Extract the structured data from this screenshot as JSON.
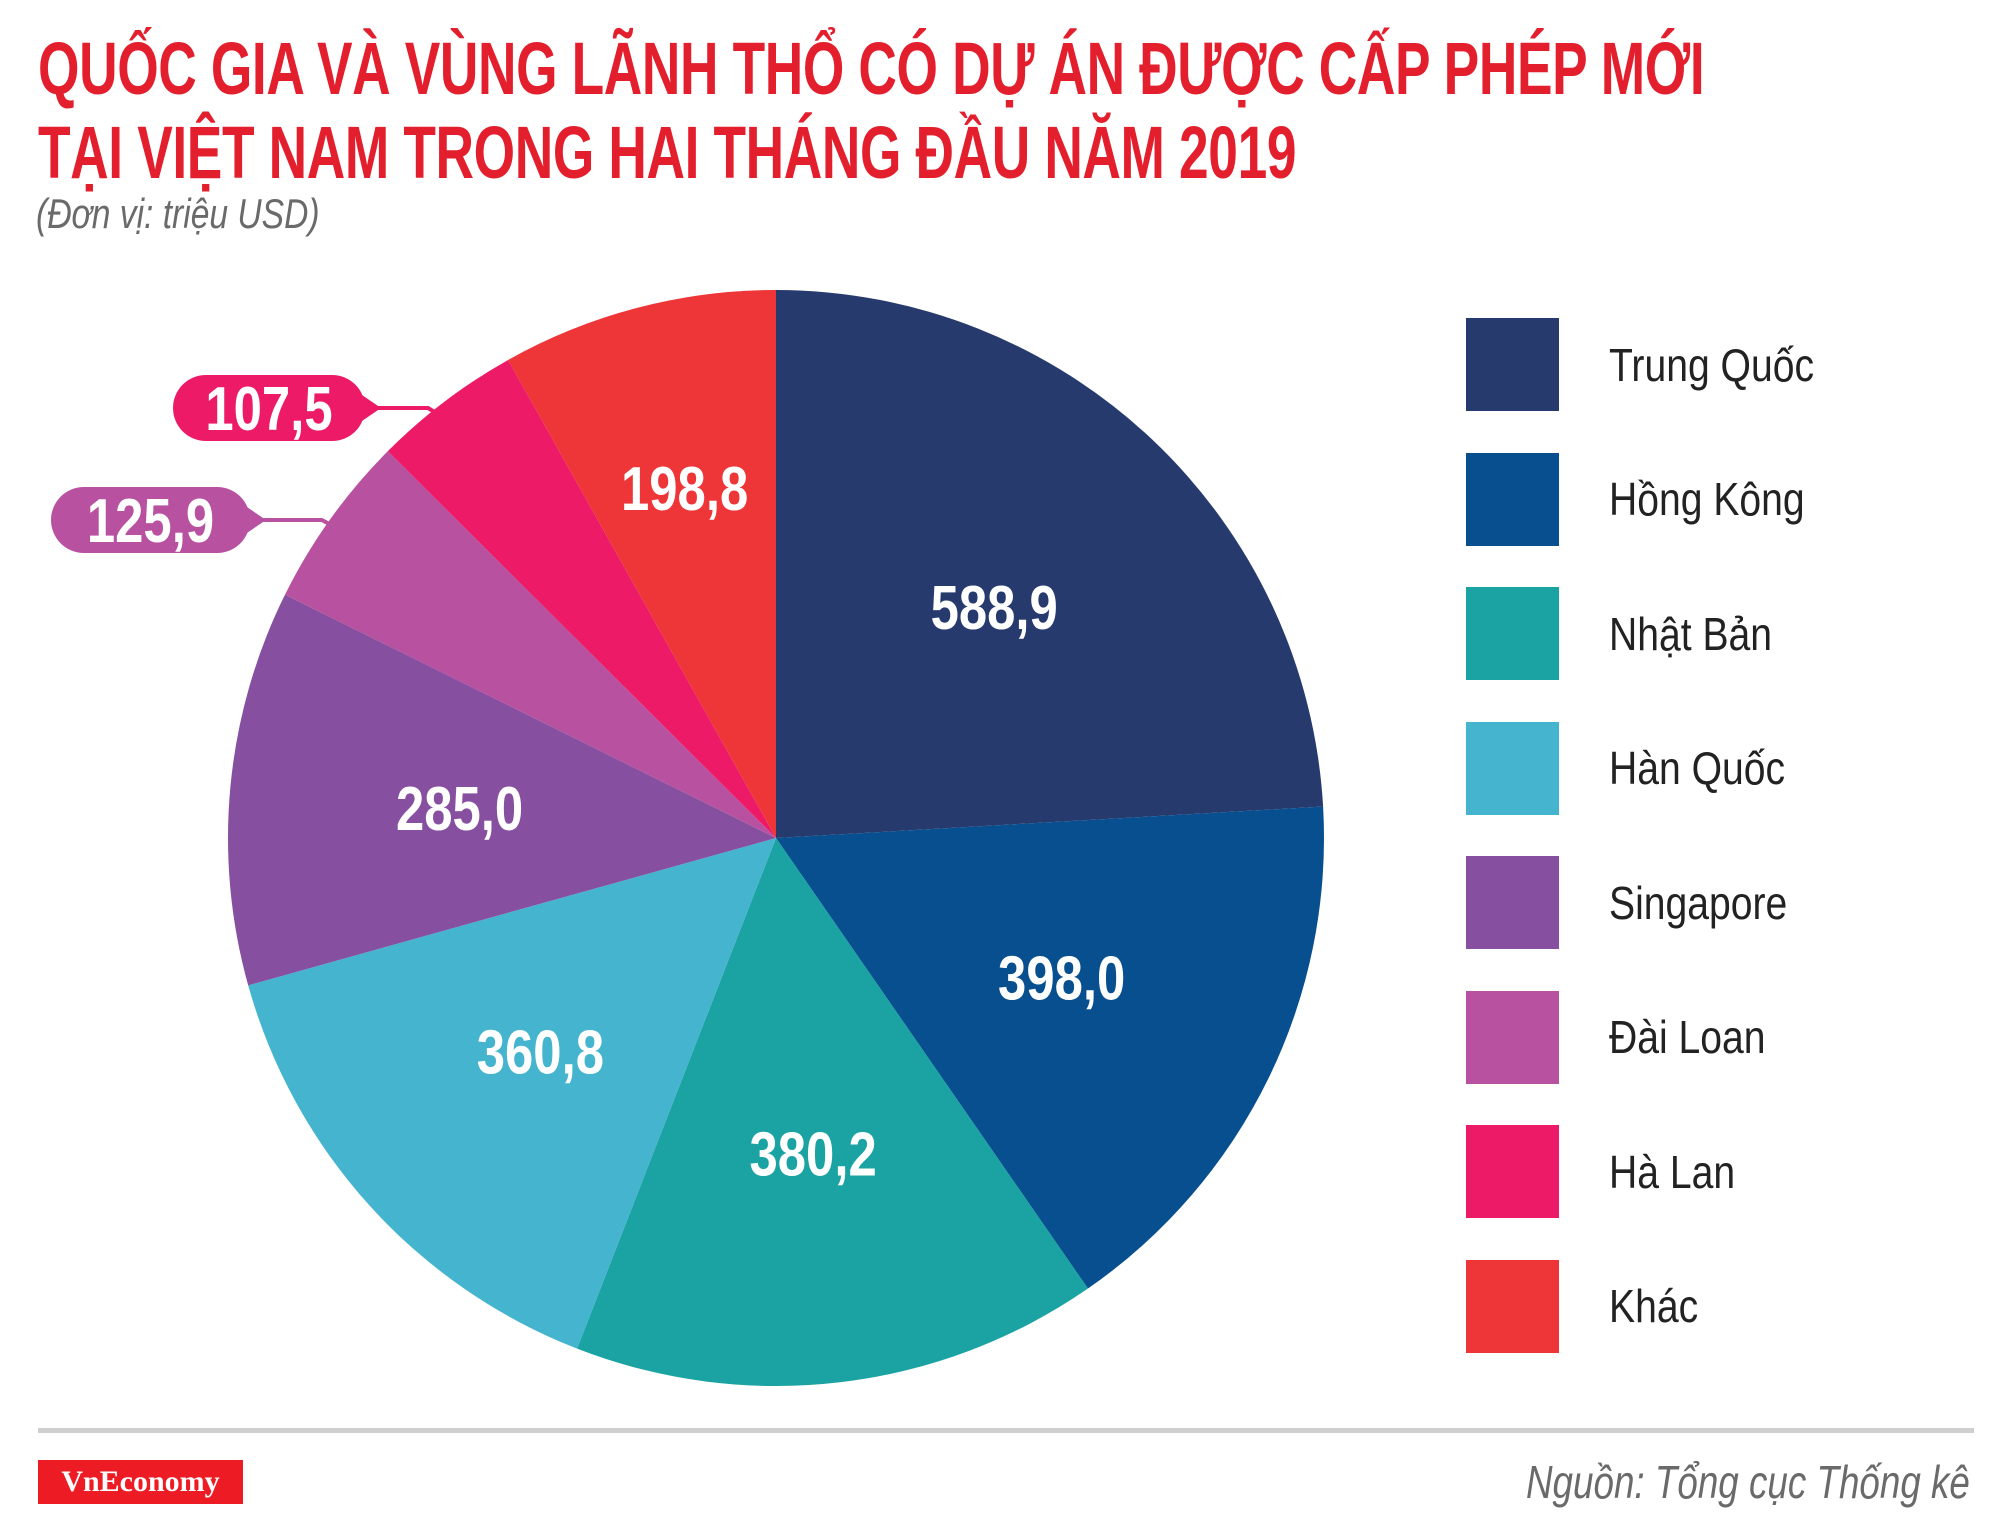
{
  "title_line1": "QUỐC GIA VÀ VÙNG LÃNH THỔ CÓ DỰ ÁN ĐƯỢC CẤP PHÉP MỚI",
  "title_line2": "TẠI VIỆT NAM TRONG HAI THÁNG ĐẦU NĂM 2019",
  "unit": "(Đơn vị: triệu USD)",
  "source": "Nguồn: Tổng cục Thống kê",
  "logo": "VnEconomy",
  "chart_data": {
    "type": "pie",
    "start": "12 o'clock, clockwise",
    "legend_placement": "right",
    "slices": [
      {
        "name": "Trung Quốc",
        "value": 588.9,
        "label": "588,9",
        "color": "#263a6e",
        "label_style": "inside"
      },
      {
        "name": "Hồng Kông",
        "value": 398.0,
        "label": "398,0",
        "color": "#074f8e",
        "label_style": "inside"
      },
      {
        "name": "Nhật Bản",
        "value": 380.2,
        "label": "380,2",
        "color": "#1ba3a3",
        "label_style": "inside"
      },
      {
        "name": "Hàn Quốc",
        "value": 360.8,
        "label": "360,8",
        "color": "#45b4cf",
        "label_style": "inside"
      },
      {
        "name": "Singapore",
        "value": 285.0,
        "label": "285,0",
        "color": "#864f9f",
        "label_style": "inside"
      },
      {
        "name": "Đài Loan",
        "value": 125.9,
        "label": "125,9",
        "color": "#b851a0",
        "label_style": "callout"
      },
      {
        "name": "Hà Lan",
        "value": 107.5,
        "label": "107,5",
        "color": "#ec1a67",
        "label_style": "callout"
      },
      {
        "name": "Khác",
        "value": 198.8,
        "label": "198,8",
        "color": "#ee3537",
        "label_style": "inside"
      }
    ]
  }
}
